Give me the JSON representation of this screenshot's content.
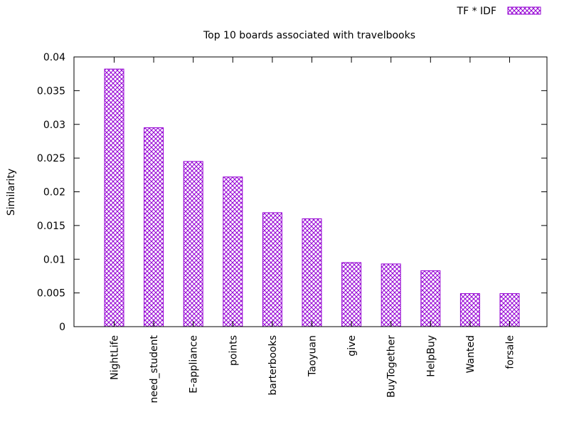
{
  "chart_data": {
    "type": "bar",
    "title": "Top 10 boards associated with travelbooks",
    "xlabel": "",
    "ylabel": "Similarity",
    "ylim": [
      0,
      0.04
    ],
    "yticks": [
      "0",
      "0.005",
      "0.01",
      "0.015",
      "0.02",
      "0.025",
      "0.03",
      "0.035",
      "0.04"
    ],
    "categories": [
      "NightLife",
      "need_student",
      "E-appliance",
      "points",
      "barterbooks",
      "Taoyuan",
      "give",
      "BuyTogether",
      "HelpBuy",
      "Wanted",
      "forsale"
    ],
    "series": [
      {
        "name": "TF * IDF",
        "color": "#9400d3",
        "pattern": "crosshatch",
        "values": [
          0.0382,
          0.0295,
          0.0245,
          0.0222,
          0.0169,
          0.016,
          0.0095,
          0.0093,
          0.0083,
          0.0049,
          0.0049
        ]
      }
    ],
    "legend": "top-right",
    "grid": false
  }
}
